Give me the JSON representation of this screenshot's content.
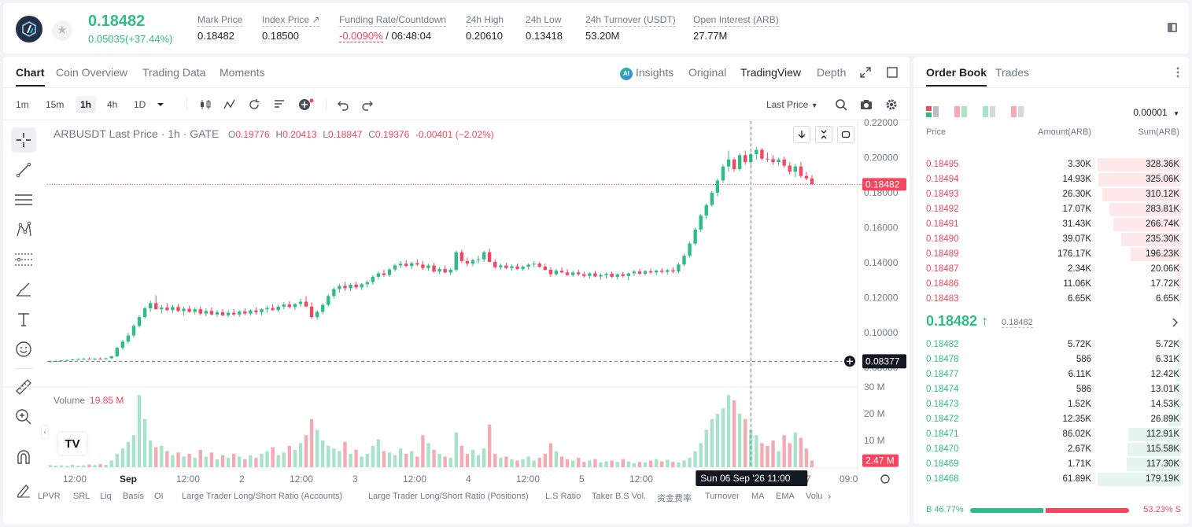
{
  "ticker": {
    "last_price": "0.18482",
    "change": "0.05035(+37.44%)",
    "stats": [
      {
        "label": "Mark Price",
        "value": "0.18482"
      },
      {
        "label": "Index Price ↗",
        "value": "0.18500"
      },
      {
        "label": "Funding Rate/Countdown",
        "value_neg": "-0.0090%",
        "value": " / 06:48:04"
      },
      {
        "label": "24h High",
        "value": "0.20610"
      },
      {
        "label": "24h Low",
        "value": "0.13418"
      },
      {
        "label": "24h Turnover (USDT)",
        "value": "53.20M"
      },
      {
        "label": "Open Interest (ARB)",
        "value": "27.77M"
      }
    ]
  },
  "tabs": [
    "Chart",
    "Coin Overview",
    "Trading Data",
    "Moments"
  ],
  "right_tabs": {
    "insights": "Insights",
    "original": "Original",
    "tradingview": "TradingView",
    "depth": "Depth"
  },
  "intervals": [
    "1m",
    "15m",
    "1h",
    "4h",
    "1D"
  ],
  "price_type": "Last Price",
  "legend": {
    "symbol": "ARBUSDT Last Price · 1h · GATE",
    "o_k": "O",
    "o": "0.19776",
    "h_k": "H",
    "h": "0.20413",
    "l_k": "L",
    "l": "0.18847",
    "c_k": "C",
    "c": "0.19376",
    "chg": "-0.00401 (−2.02%)"
  },
  "volume_legend": {
    "label": "Volume",
    "value": "19.85 M"
  },
  "price_axis": [
    "0.22000",
    "0.20000",
    "0.18000",
    "0.16000",
    "0.14000",
    "0.12000",
    "0.10000",
    "0.08000"
  ],
  "volume_axis": [
    "30 M",
    "20 M",
    "10 M"
  ],
  "current_price_tag": "0.18482",
  "crosshair_price_tag": "0.08377",
  "current_volume_tag": "2.47 M",
  "time_axis": [
    "12:00",
    "Sep",
    "12:00",
    "2",
    "12:00",
    "3",
    "12:00",
    "4",
    "12:00",
    "5",
    "12:00",
    "7",
    "09:0"
  ],
  "crosshair_time": "Sun 06 Sep '26   11:00",
  "indicators": [
    "LPVR",
    "SRL",
    "Liq",
    "Basis",
    "OI",
    "Large Trader Long/Short Ratio (Accounts)",
    "Large Trader Long/Short Ratio (Positions)",
    "L.S Ratio",
    "Taker B.S Vol.",
    "资金费率",
    "Turnover",
    "MA",
    "EMA",
    "Volu"
  ],
  "colors": {
    "up": "#2ebd85",
    "down": "#f6465d",
    "up_vol": "#a6e3c8",
    "down_vol": "#f5a9b3"
  },
  "chart_data": {
    "type": "candlestick",
    "title": "ARBUSDT Last Price · 1h · GATE",
    "ylim": [
      0.07,
      0.22
    ],
    "candles_ohlc": [
      [
        0.0835,
        0.0842,
        0.083,
        0.0838
      ],
      [
        0.0838,
        0.0845,
        0.0834,
        0.084
      ],
      [
        0.084,
        0.0846,
        0.0836,
        0.0843
      ],
      [
        0.0843,
        0.0848,
        0.0839,
        0.0845
      ],
      [
        0.0845,
        0.0852,
        0.0841,
        0.0848
      ],
      [
        0.0848,
        0.0855,
        0.0844,
        0.085
      ],
      [
        0.085,
        0.0856,
        0.0846,
        0.0852
      ],
      [
        0.0852,
        0.0858,
        0.0847,
        0.0849
      ],
      [
        0.0849,
        0.0856,
        0.0845,
        0.0853
      ],
      [
        0.0853,
        0.086,
        0.0849,
        0.0851
      ],
      [
        0.0851,
        0.0858,
        0.0847,
        0.0855
      ],
      [
        0.0855,
        0.087,
        0.0852,
        0.0866
      ],
      [
        0.0866,
        0.092,
        0.0862,
        0.0915
      ],
      [
        0.0915,
        0.096,
        0.0905,
        0.095
      ],
      [
        0.095,
        0.1,
        0.094,
        0.0985
      ],
      [
        0.0985,
        0.105,
        0.0975,
        0.104
      ],
      [
        0.104,
        0.11,
        0.103,
        0.109
      ],
      [
        0.109,
        0.115,
        0.108,
        0.114
      ],
      [
        0.114,
        0.1185,
        0.112,
        0.117
      ],
      [
        0.117,
        0.1215,
        0.115,
        0.1135
      ],
      [
        0.1135,
        0.116,
        0.111,
        0.1145
      ],
      [
        0.1145,
        0.117,
        0.1125,
        0.113
      ],
      [
        0.113,
        0.116,
        0.1115,
        0.1148
      ],
      [
        0.1148,
        0.1165,
        0.112,
        0.1125
      ],
      [
        0.1125,
        0.115,
        0.11,
        0.1138
      ],
      [
        0.1138,
        0.1155,
        0.1115,
        0.112
      ],
      [
        0.112,
        0.1145,
        0.1105,
        0.1135
      ],
      [
        0.1135,
        0.115,
        0.11,
        0.111
      ],
      [
        0.111,
        0.114,
        0.1095,
        0.1125
      ],
      [
        0.1125,
        0.1145,
        0.11,
        0.1105
      ],
      [
        0.1105,
        0.113,
        0.109,
        0.1118
      ],
      [
        0.1118,
        0.1135,
        0.1095,
        0.11
      ],
      [
        0.11,
        0.113,
        0.1088,
        0.1115
      ],
      [
        0.1115,
        0.1135,
        0.1095,
        0.1105
      ],
      [
        0.1105,
        0.113,
        0.109,
        0.1122
      ],
      [
        0.1122,
        0.114,
        0.11,
        0.111
      ],
      [
        0.111,
        0.1135,
        0.1098,
        0.1128
      ],
      [
        0.1128,
        0.1145,
        0.1105,
        0.1118
      ],
      [
        0.1118,
        0.114,
        0.11,
        0.1135
      ],
      [
        0.1135,
        0.1155,
        0.1115,
        0.1142
      ],
      [
        0.1142,
        0.1165,
        0.1125,
        0.113
      ],
      [
        0.113,
        0.116,
        0.112,
        0.115
      ],
      [
        0.115,
        0.1175,
        0.1135,
        0.1162
      ],
      [
        0.1162,
        0.118,
        0.114,
        0.1148
      ],
      [
        0.1148,
        0.117,
        0.113,
        0.1165
      ],
      [
        0.1165,
        0.1195,
        0.115,
        0.1178
      ],
      [
        0.1178,
        0.121,
        0.116,
        0.115
      ],
      [
        0.115,
        0.1175,
        0.108,
        0.109
      ],
      [
        0.109,
        0.113,
        0.1075,
        0.112
      ],
      [
        0.112,
        0.117,
        0.1105,
        0.116
      ],
      [
        0.116,
        0.122,
        0.115,
        0.121
      ],
      [
        0.121,
        0.126,
        0.1195,
        0.125
      ],
      [
        0.125,
        0.128,
        0.123,
        0.1268
      ],
      [
        0.1268,
        0.129,
        0.124,
        0.1255
      ],
      [
        0.1255,
        0.1285,
        0.124,
        0.1275
      ],
      [
        0.1275,
        0.129,
        0.125,
        0.126
      ],
      [
        0.126,
        0.1285,
        0.1245,
        0.1278
      ],
      [
        0.1278,
        0.13,
        0.126,
        0.129
      ],
      [
        0.129,
        0.133,
        0.1275,
        0.132
      ],
      [
        0.132,
        0.135,
        0.1305,
        0.134
      ],
      [
        0.134,
        0.136,
        0.132,
        0.133
      ],
      [
        0.133,
        0.137,
        0.132,
        0.1362
      ],
      [
        0.1362,
        0.1395,
        0.135,
        0.1385
      ],
      [
        0.1385,
        0.141,
        0.137,
        0.1395
      ],
      [
        0.1395,
        0.1415,
        0.1375,
        0.1382
      ],
      [
        0.1382,
        0.1405,
        0.1365,
        0.1398
      ],
      [
        0.1398,
        0.142,
        0.138,
        0.139
      ],
      [
        0.139,
        0.141,
        0.136,
        0.137
      ],
      [
        0.137,
        0.1395,
        0.1355,
        0.1385
      ],
      [
        0.1385,
        0.14,
        0.1345,
        0.135
      ],
      [
        0.135,
        0.1375,
        0.1335,
        0.1365
      ],
      [
        0.1365,
        0.1385,
        0.134,
        0.1345
      ],
      [
        0.1345,
        0.137,
        0.133,
        0.136
      ],
      [
        0.136,
        0.147,
        0.135,
        0.146
      ],
      [
        0.146,
        0.1475,
        0.14,
        0.141
      ],
      [
        0.141,
        0.143,
        0.138,
        0.1395
      ],
      [
        0.1395,
        0.1425,
        0.138,
        0.1415
      ],
      [
        0.1415,
        0.144,
        0.1395,
        0.142
      ],
      [
        0.142,
        0.147,
        0.1405,
        0.146
      ],
      [
        0.146,
        0.148,
        0.141,
        0.1405
      ],
      [
        0.1405,
        0.142,
        0.1365,
        0.1375
      ],
      [
        0.1375,
        0.1395,
        0.136,
        0.1385
      ],
      [
        0.1385,
        0.14,
        0.1365,
        0.137
      ],
      [
        0.137,
        0.139,
        0.1355,
        0.138
      ],
      [
        0.138,
        0.1395,
        0.136,
        0.1365
      ],
      [
        0.1365,
        0.1385,
        0.1355,
        0.1378
      ],
      [
        0.1378,
        0.1398,
        0.136,
        0.139
      ],
      [
        0.139,
        0.141,
        0.1375,
        0.1395
      ],
      [
        0.1395,
        0.1405,
        0.137,
        0.1378
      ],
      [
        0.1378,
        0.1395,
        0.1355,
        0.136
      ],
      [
        0.136,
        0.1375,
        0.132,
        0.1335
      ],
      [
        0.1335,
        0.1365,
        0.1325,
        0.1355
      ],
      [
        0.1355,
        0.1375,
        0.134,
        0.1345
      ],
      [
        0.1345,
        0.1365,
        0.1325,
        0.133
      ],
      [
        0.133,
        0.1355,
        0.132,
        0.1345
      ],
      [
        0.1345,
        0.136,
        0.1325,
        0.1335
      ],
      [
        0.1335,
        0.135,
        0.1315,
        0.1325
      ],
      [
        0.1325,
        0.1345,
        0.131,
        0.134
      ],
      [
        0.134,
        0.1355,
        0.1318,
        0.1322
      ],
      [
        0.1322,
        0.134,
        0.1305,
        0.133
      ],
      [
        0.133,
        0.1345,
        0.131,
        0.1338
      ],
      [
        0.1338,
        0.135,
        0.1315,
        0.132
      ],
      [
        0.132,
        0.134,
        0.1305,
        0.1335
      ],
      [
        0.1335,
        0.1348,
        0.1315,
        0.1325
      ],
      [
        0.1325,
        0.1345,
        0.13,
        0.134
      ],
      [
        0.134,
        0.136,
        0.1325,
        0.135
      ],
      [
        0.135,
        0.1365,
        0.133,
        0.1338
      ],
      [
        0.1338,
        0.136,
        0.1325,
        0.1352
      ],
      [
        0.1352,
        0.1368,
        0.1335,
        0.1345
      ],
      [
        0.1345,
        0.1362,
        0.133,
        0.1355
      ],
      [
        0.1355,
        0.137,
        0.1338,
        0.1348
      ],
      [
        0.1348,
        0.1365,
        0.1332,
        0.1358
      ],
      [
        0.1358,
        0.1375,
        0.134,
        0.135
      ],
      [
        0.135,
        0.14,
        0.134,
        0.139
      ],
      [
        0.139,
        0.145,
        0.138,
        0.144
      ],
      [
        0.144,
        0.152,
        0.143,
        0.151
      ],
      [
        0.151,
        0.16,
        0.15,
        0.159
      ],
      [
        0.159,
        0.168,
        0.1575,
        0.167
      ],
      [
        0.167,
        0.174,
        0.165,
        0.173
      ],
      [
        0.173,
        0.181,
        0.172,
        0.18
      ],
      [
        0.18,
        0.188,
        0.178,
        0.187
      ],
      [
        0.187,
        0.196,
        0.1855,
        0.195
      ],
      [
        0.195,
        0.204,
        0.192,
        0.199
      ],
      [
        0.199,
        0.2,
        0.192,
        0.1935
      ],
      [
        0.1935,
        0.2025,
        0.1925,
        0.2015
      ],
      [
        0.2015,
        0.2041,
        0.196,
        0.1975
      ],
      [
        0.1975,
        0.203,
        0.1955,
        0.202
      ],
      [
        0.202,
        0.2061,
        0.199,
        0.2045
      ],
      [
        0.2045,
        0.2055,
        0.1985,
        0.1995
      ],
      [
        0.1995,
        0.203,
        0.1975,
        0.1992
      ],
      [
        0.1992,
        0.2015,
        0.196,
        0.1975
      ],
      [
        0.1975,
        0.2,
        0.1955,
        0.199
      ],
      [
        0.199,
        0.2005,
        0.1945,
        0.1955
      ],
      [
        0.1955,
        0.1975,
        0.1905,
        0.192
      ],
      [
        0.192,
        0.1965,
        0.189,
        0.195
      ],
      [
        0.195,
        0.1975,
        0.1885,
        0.1896
      ],
      [
        0.1896,
        0.192,
        0.187,
        0.1882
      ],
      [
        0.1882,
        0.19,
        0.1865,
        0.1848
      ]
    ],
    "volume_m": [
      0.8,
      0.6,
      0.7,
      0.5,
      0.9,
      0.6,
      0.7,
      1.0,
      0.8,
      1.2,
      0.9,
      2.5,
      5.0,
      7.0,
      9.5,
      12.0,
      27.0,
      18.0,
      10.0,
      7.5,
      8.0,
      6.0,
      4.5,
      5.5,
      4.0,
      5.0,
      3.5,
      6.5,
      4.0,
      5.5,
      3.0,
      4.5,
      3.5,
      5.0,
      4.0,
      3.0,
      4.5,
      3.5,
      5.0,
      6.0,
      7.5,
      4.5,
      5.5,
      8.0,
      6.5,
      9.0,
      12.0,
      18.0,
      14.0,
      10.0,
      8.0,
      7.0,
      6.0,
      9.5,
      5.0,
      6.5,
      4.0,
      5.0,
      8.0,
      10.5,
      6.0,
      5.5,
      4.5,
      7.0,
      5.0,
      6.0,
      4.0,
      12.0,
      9.0,
      6.5,
      5.0,
      4.0,
      3.5,
      13.0,
      8.0,
      5.0,
      6.5,
      4.5,
      7.0,
      16.0,
      5.0,
      3.5,
      4.0,
      3.0,
      2.5,
      3.0,
      4.0,
      2.5,
      3.5,
      5.0,
      9.0,
      6.0,
      4.0,
      3.0,
      2.5,
      3.5,
      2.0,
      2.5,
      3.0,
      1.8,
      2.2,
      2.5,
      2.0,
      3.0,
      2.2,
      1.5,
      2.0,
      1.8,
      2.5,
      3.0,
      2.2,
      2.8,
      2.0,
      1.8,
      2.5,
      3.5,
      6.0,
      9.0,
      14.0,
      18.0,
      20.0,
      22.0,
      27.0,
      25.0,
      20.0,
      18.0,
      14.0,
      12.0,
      9.0,
      8.0,
      10.0,
      6.0,
      12.0,
      9.0,
      13.0,
      11.0,
      7.0,
      2.47
    ]
  },
  "order_book": {
    "tab_ob": "Order Book",
    "tab_trades": "Trades",
    "precision": "0.00001",
    "headers": {
      "price": "Price",
      "amount": "Amount(ARB)",
      "sum": "Sum(ARB)"
    },
    "asks": [
      {
        "price": "0.18495",
        "amount": "3.30K",
        "sum": "328.36K",
        "depth": 1.0
      },
      {
        "price": "0.18494",
        "amount": "14.93K",
        "sum": "325.06K",
        "depth": 0.99
      },
      {
        "price": "0.18493",
        "amount": "26.30K",
        "sum": "310.12K",
        "depth": 0.94
      },
      {
        "price": "0.18492",
        "amount": "17.07K",
        "sum": "283.81K",
        "depth": 0.86
      },
      {
        "price": "0.18491",
        "amount": "31.43K",
        "sum": "266.74K",
        "depth": 0.81
      },
      {
        "price": "0.18490",
        "amount": "39.07K",
        "sum": "235.30K",
        "depth": 0.72
      },
      {
        "price": "0.18489",
        "amount": "176.17K",
        "sum": "196.23K",
        "depth": 0.6
      },
      {
        "price": "0.18487",
        "amount": "2.34K",
        "sum": "20.06K",
        "depth": 0.06
      },
      {
        "price": "0.18486",
        "amount": "11.06K",
        "sum": "17.72K",
        "depth": 0.05
      },
      {
        "price": "0.18483",
        "amount": "6.65K",
        "sum": "6.65K",
        "depth": 0.02
      }
    ],
    "mid_price": "0.18482 ↑",
    "mark_price": "0.18482",
    "bids": [
      {
        "price": "0.18482",
        "amount": "5.72K",
        "sum": "5.72K",
        "depth": 0.03
      },
      {
        "price": "0.18478",
        "amount": "586",
        "sum": "6.31K",
        "depth": 0.04
      },
      {
        "price": "0.18477",
        "amount": "6.11K",
        "sum": "12.42K",
        "depth": 0.07
      },
      {
        "price": "0.18474",
        "amount": "586",
        "sum": "13.01K",
        "depth": 0.07
      },
      {
        "price": "0.18473",
        "amount": "1.52K",
        "sum": "14.53K",
        "depth": 0.08
      },
      {
        "price": "0.18472",
        "amount": "12.35K",
        "sum": "26.89K",
        "depth": 0.15
      },
      {
        "price": "0.18471",
        "amount": "86.02K",
        "sum": "112.91K",
        "depth": 0.63
      },
      {
        "price": "0.18470",
        "amount": "2.67K",
        "sum": "115.58K",
        "depth": 0.64
      },
      {
        "price": "0.18469",
        "amount": "1.71K",
        "sum": "117.30K",
        "depth": 0.65
      },
      {
        "price": "0.18468",
        "amount": "61.89K",
        "sum": "179.19K",
        "depth": 1.0
      }
    ],
    "buy_ratio": "B 46.77%",
    "sell_ratio": "53.23% S",
    "buy_fraction": 0.4677
  }
}
